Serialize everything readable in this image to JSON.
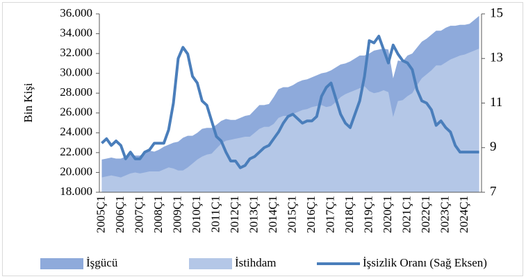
{
  "chart_data": {
    "type": "area",
    "y_label": "Bin Kişi",
    "categories": [
      "2005Ç1",
      null,
      null,
      null,
      "2006Ç1",
      null,
      null,
      null,
      "2007Ç1",
      null,
      null,
      null,
      "2008Ç1",
      null,
      null,
      null,
      "2009Ç1",
      null,
      null,
      null,
      "2010Ç1",
      null,
      null,
      null,
      "2011Ç1",
      null,
      null,
      null,
      "2012Ç1",
      null,
      null,
      null,
      "2013Ç1",
      null,
      null,
      null,
      "2014Ç1",
      null,
      null,
      null,
      "2015Ç1",
      null,
      null,
      null,
      "2016Ç1",
      null,
      null,
      null,
      "2017Ç1",
      null,
      null,
      null,
      "2018Ç1",
      null,
      null,
      null,
      "2019Ç1",
      null,
      null,
      null,
      "2020Ç1",
      null,
      null,
      null,
      "2021Ç1",
      null,
      null,
      null,
      "2022Ç1",
      null,
      null,
      null,
      "2023Ç1",
      null,
      null,
      null,
      "2024Ç1",
      null,
      null,
      null
    ],
    "series": [
      {
        "name": "İşgücü",
        "type": "area",
        "color": "#8eaadb",
        "values": [
          21300,
          21400,
          21500,
          21400,
          21400,
          21600,
          21800,
          21700,
          21700,
          22000,
          22200,
          22100,
          22300,
          22600,
          22800,
          23000,
          23100,
          23500,
          23700,
          23700,
          24000,
          24400,
          24500,
          24500,
          24800,
          25200,
          25400,
          25300,
          25300,
          25500,
          25700,
          25800,
          26300,
          26800,
          26800,
          26900,
          27600,
          28400,
          28600,
          28600,
          28800,
          29100,
          29300,
          29400,
          29600,
          29800,
          30000,
          30100,
          30300,
          30600,
          30900,
          31000,
          31200,
          31500,
          31800,
          31800,
          32000,
          32300,
          32400,
          32500,
          32400,
          29500,
          31300,
          31200,
          31800,
          32000,
          32600,
          33200,
          33500,
          33900,
          34300,
          34300,
          34600,
          34800,
          34800,
          34900,
          34900,
          35000,
          35400,
          35800
        ]
      },
      {
        "name": "İstihdam",
        "type": "area",
        "color": "#b4c7e7",
        "values": [
          19500,
          19600,
          19700,
          19600,
          19500,
          19700,
          19900,
          20000,
          19900,
          20000,
          20100,
          20100,
          20100,
          20300,
          20500,
          20400,
          20200,
          20200,
          20500,
          20900,
          21300,
          21600,
          21800,
          21900,
          22400,
          22900,
          23200,
          23300,
          23400,
          23500,
          23600,
          23600,
          24000,
          24400,
          24600,
          24600,
          24900,
          25500,
          25700,
          25700,
          25900,
          26100,
          26300,
          26400,
          26600,
          26700,
          26800,
          26600,
          26700,
          27100,
          27600,
          27900,
          28100,
          28300,
          28500,
          28700,
          28200,
          28000,
          28100,
          28300,
          28100,
          25600,
          27200,
          27300,
          27700,
          28000,
          28800,
          29500,
          29900,
          30300,
          30800,
          30800,
          31100,
          31400,
          31600,
          31800,
          31900,
          32100,
          32300,
          32500
        ]
      },
      {
        "name": "İşsizlik Oranı (Sağ Eksen)",
        "type": "line",
        "axis": "y2",
        "color": "#4a7ebb",
        "values": [
          9.2,
          9.4,
          9.1,
          9.3,
          9.1,
          8.5,
          8.8,
          8.5,
          8.5,
          8.8,
          8.9,
          9.2,
          9.2,
          9.2,
          9.8,
          11.0,
          13.0,
          13.5,
          13.2,
          12.2,
          11.9,
          11.1,
          10.9,
          10.2,
          9.5,
          9.3,
          8.8,
          8.4,
          8.4,
          8.1,
          8.2,
          8.5,
          8.6,
          8.8,
          9.0,
          9.1,
          9.4,
          9.7,
          10.1,
          10.4,
          10.5,
          10.3,
          10.1,
          10.2,
          10.2,
          10.4,
          11.3,
          11.7,
          11.9,
          11.2,
          10.5,
          10.1,
          9.9,
          10.5,
          11.1,
          12.2,
          13.8,
          13.7,
          14.0,
          13.4,
          12.8,
          13.6,
          13.2,
          12.9,
          12.8,
          12.5,
          11.6,
          11.1,
          11.0,
          10.7,
          10.0,
          10.2,
          9.9,
          9.7,
          9.1,
          8.8,
          8.8,
          8.8,
          8.8,
          8.8
        ]
      }
    ],
    "ylim": [
      18000,
      36000
    ],
    "yticks": [
      {
        "value": 18000,
        "label": "18.000"
      },
      {
        "value": 20000,
        "label": "20.000"
      },
      {
        "value": 22000,
        "label": "22.000"
      },
      {
        "value": 24000,
        "label": "24.000"
      },
      {
        "value": 26000,
        "label": "26.000"
      },
      {
        "value": 28000,
        "label": "28.000"
      },
      {
        "value": 30000,
        "label": "30.000"
      },
      {
        "value": 32000,
        "label": "32.000"
      },
      {
        "value": 34000,
        "label": "34.000"
      },
      {
        "value": 36000,
        "label": "36.000"
      }
    ],
    "y2lim": [
      7,
      15
    ],
    "y2ticks": [
      7,
      9,
      11,
      13,
      15
    ],
    "grid": false,
    "legend": "bottom"
  }
}
